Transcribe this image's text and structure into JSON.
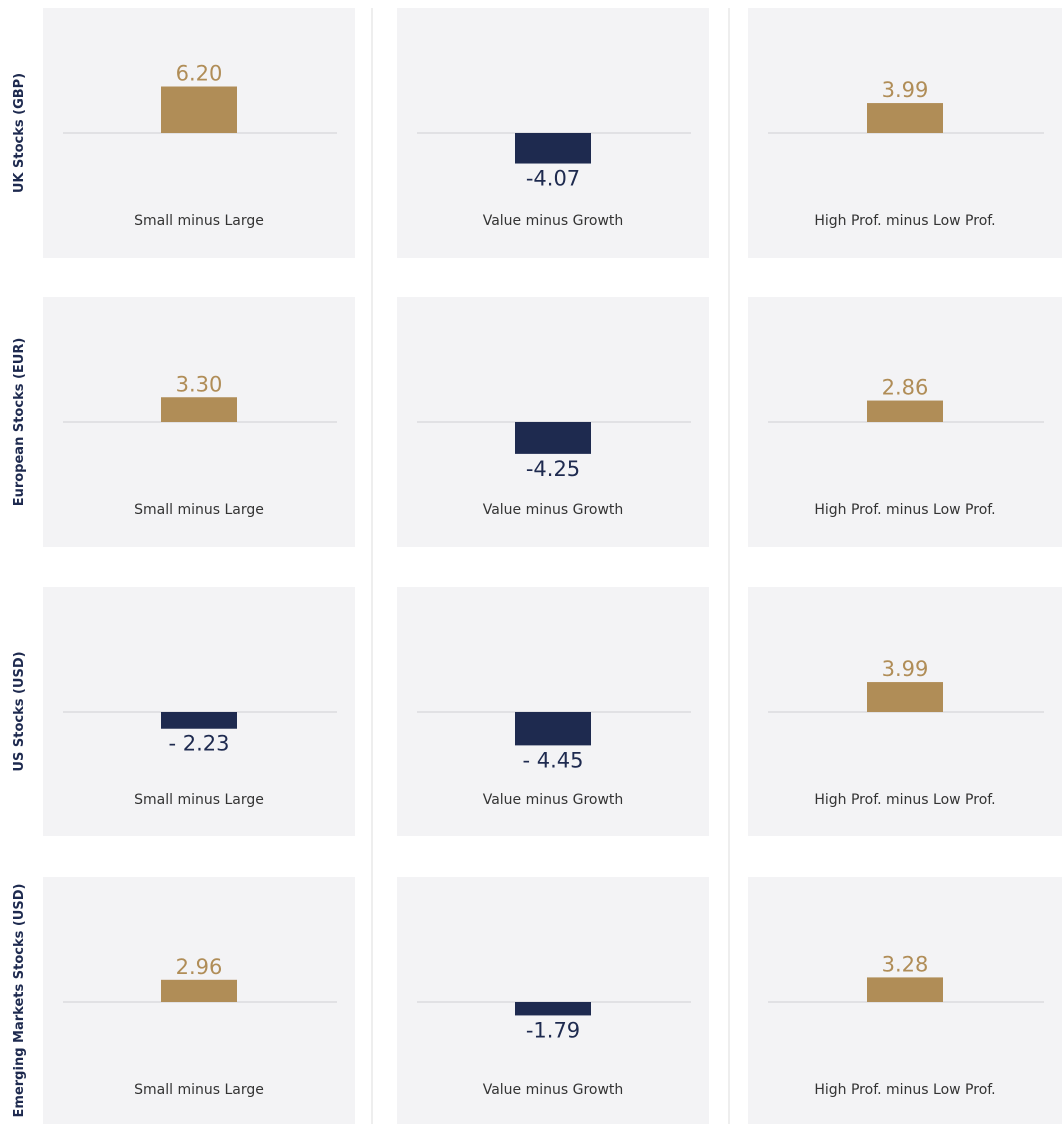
{
  "chart_data": [
    {
      "type": "bar",
      "title": "UK Stocks (GBP)",
      "categories": [
        "Small minus Large",
        "Value minus Growth",
        "High Prof. minus Low Prof."
      ],
      "values": [
        6.2,
        -4.07,
        3.99
      ],
      "value_labels": [
        "6.20",
        "-4.07",
        "3.99"
      ],
      "colors": [
        "#b08d57",
        "#1e2a4f",
        "#b08d57"
      ],
      "ylim": [
        -10,
        10
      ]
    },
    {
      "type": "bar",
      "title": "European Stocks (EUR)",
      "categories": [
        "Small minus Large",
        "Value minus Growth",
        "High Prof. minus Low Prof."
      ],
      "values": [
        3.3,
        -4.25,
        2.86
      ],
      "value_labels": [
        "3.30",
        "-4.25",
        "2.86"
      ],
      "colors": [
        "#b08d57",
        "#1e2a4f",
        "#b08d57"
      ],
      "ylim": [
        -10,
        10
      ]
    },
    {
      "type": "bar",
      "title": "US Stocks (USD)",
      "categories": [
        "Small minus Large",
        "Value minus Growth",
        "High Prof. minus Low Prof."
      ],
      "values": [
        -2.23,
        -4.45,
        3.99
      ],
      "value_labels": [
        "- 2.23",
        "- 4.45",
        "3.99"
      ],
      "colors": [
        "#1e2a4f",
        "#1e2a4f",
        "#b08d57"
      ],
      "ylim": [
        -10,
        10
      ]
    },
    {
      "type": "bar",
      "title": "Emerging Markets Stocks (USD)",
      "categories": [
        "Small minus Large",
        "Value minus Growth",
        "High Prof. minus Low Prof."
      ],
      "values": [
        2.96,
        -1.79,
        3.28
      ],
      "value_labels": [
        "2.96",
        "-1.79",
        "3.28"
      ],
      "colors": [
        "#b08d57",
        "#1e2a4f",
        "#b08d57"
      ],
      "ylim": [
        -10,
        10
      ]
    }
  ]
}
